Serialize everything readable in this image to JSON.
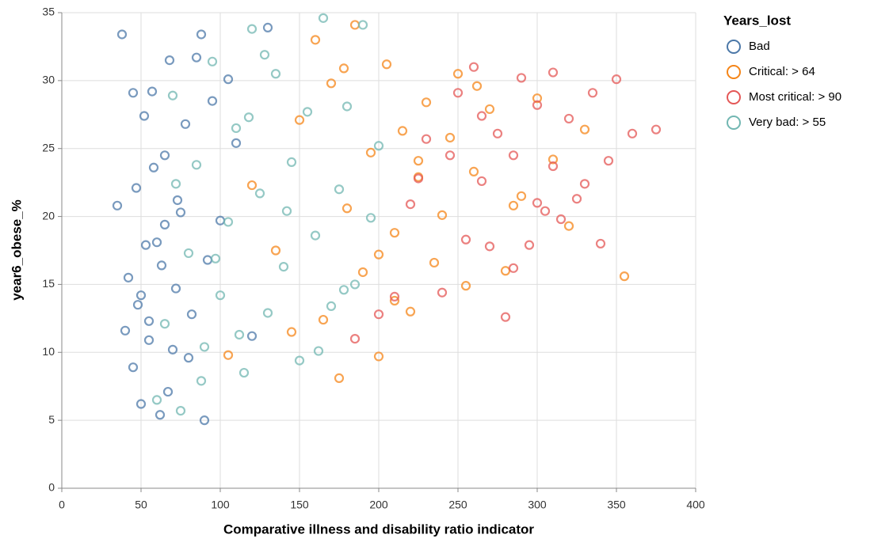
{
  "chart_data": {
    "type": "scatter",
    "x_label": "Comparative illness and disability ratio indicator",
    "y_label": "year6_obese_%",
    "legend_title": "Years_lost",
    "legend_position": "right",
    "grid": true,
    "xlim": [
      0,
      400
    ],
    "xticks": [
      0,
      50,
      100,
      150,
      200,
      250,
      300,
      350,
      400
    ],
    "ylim": [
      0,
      35
    ],
    "yticks": [
      0,
      5,
      10,
      15,
      20,
      25,
      30,
      35
    ],
    "series": [
      {
        "name": "Bad",
        "color": "#4c78a8",
        "x": [
          35,
          38,
          42,
          45,
          47,
          50,
          52,
          55,
          57,
          60,
          62,
          65,
          68,
          70,
          72,
          75,
          78,
          80,
          85,
          90,
          95,
          100,
          105,
          110,
          120,
          130,
          48,
          53,
          58,
          63,
          67,
          73,
          82,
          88,
          45,
          55,
          65,
          40,
          50,
          92
        ],
        "values": [
          20.8,
          33.4,
          15.5,
          8.9,
          22.1,
          6.2,
          27.4,
          12.3,
          29.2,
          18.1,
          5.4,
          24.5,
          31.5,
          10.2,
          14.7,
          20.3,
          26.8,
          9.6,
          31.7,
          5.0,
          28.5,
          19.7,
          30.1,
          25.4,
          11.2,
          33.9,
          13.5,
          17.9,
          23.6,
          16.4,
          7.1,
          21.2,
          12.8,
          33.4,
          29.1,
          10.9,
          19.4,
          11.6,
          14.2,
          16.8
        ]
      },
      {
        "name": "Critical: > 64",
        "color": "#f58518",
        "x": [
          105,
          120,
          135,
          150,
          160,
          165,
          170,
          175,
          180,
          185,
          190,
          195,
          200,
          205,
          210,
          215,
          220,
          225,
          230,
          235,
          240,
          245,
          250,
          255,
          260,
          270,
          280,
          290,
          300,
          310,
          320,
          330,
          355,
          178,
          200,
          145,
          225,
          262,
          285,
          210
        ],
        "values": [
          9.8,
          22.3,
          17.5,
          27.1,
          33.0,
          12.4,
          29.8,
          8.1,
          20.6,
          34.1,
          15.9,
          24.7,
          9.7,
          31.2,
          18.8,
          26.3,
          13.0,
          22.9,
          28.4,
          16.6,
          20.1,
          25.8,
          30.5,
          14.9,
          23.3,
          27.9,
          16.0,
          21.5,
          28.7,
          24.2,
          19.3,
          26.4,
          15.6,
          30.9,
          17.2,
          11.5,
          24.1,
          29.6,
          20.8,
          13.8
        ]
      },
      {
        "name": "Most critical: > 90",
        "color": "#e45756",
        "x": [
          185,
          200,
          210,
          220,
          230,
          240,
          250,
          255,
          260,
          265,
          270,
          275,
          280,
          285,
          290,
          295,
          300,
          305,
          310,
          315,
          320,
          325,
          330,
          335,
          340,
          345,
          350,
          360,
          375,
          285,
          245,
          225,
          310,
          300,
          265
        ],
        "values": [
          11.0,
          12.8,
          14.1,
          20.9,
          25.7,
          14.4,
          29.1,
          18.3,
          31.0,
          22.6,
          17.8,
          26.1,
          12.6,
          24.5,
          30.2,
          17.9,
          28.2,
          20.4,
          23.7,
          19.8,
          27.2,
          21.3,
          22.4,
          29.1,
          18.0,
          24.1,
          30.1,
          26.1,
          26.4,
          16.2,
          24.5,
          22.8,
          30.6,
          21.0,
          27.4
        ]
      },
      {
        "name": "Very bad: > 55",
        "color": "#72b7b2",
        "x": [
          60,
          65,
          70,
          75,
          80,
          85,
          90,
          95,
          100,
          105,
          110,
          115,
          120,
          125,
          130,
          135,
          140,
          145,
          150,
          155,
          160,
          165,
          170,
          175,
          180,
          185,
          190,
          195,
          200,
          88,
          112,
          128,
          142,
          72,
          97,
          162,
          118,
          178
        ],
        "values": [
          6.5,
          12.1,
          28.9,
          5.7,
          17.3,
          23.8,
          10.4,
          31.4,
          14.2,
          19.6,
          26.5,
          8.5,
          33.8,
          21.7,
          12.9,
          30.5,
          16.3,
          24.0,
          9.4,
          27.7,
          18.6,
          34.6,
          13.4,
          22.0,
          28.1,
          15.0,
          34.1,
          19.9,
          25.2,
          7.9,
          11.3,
          31.9,
          20.4,
          22.4,
          16.9,
          10.1,
          27.3,
          14.6
        ]
      }
    ]
  }
}
